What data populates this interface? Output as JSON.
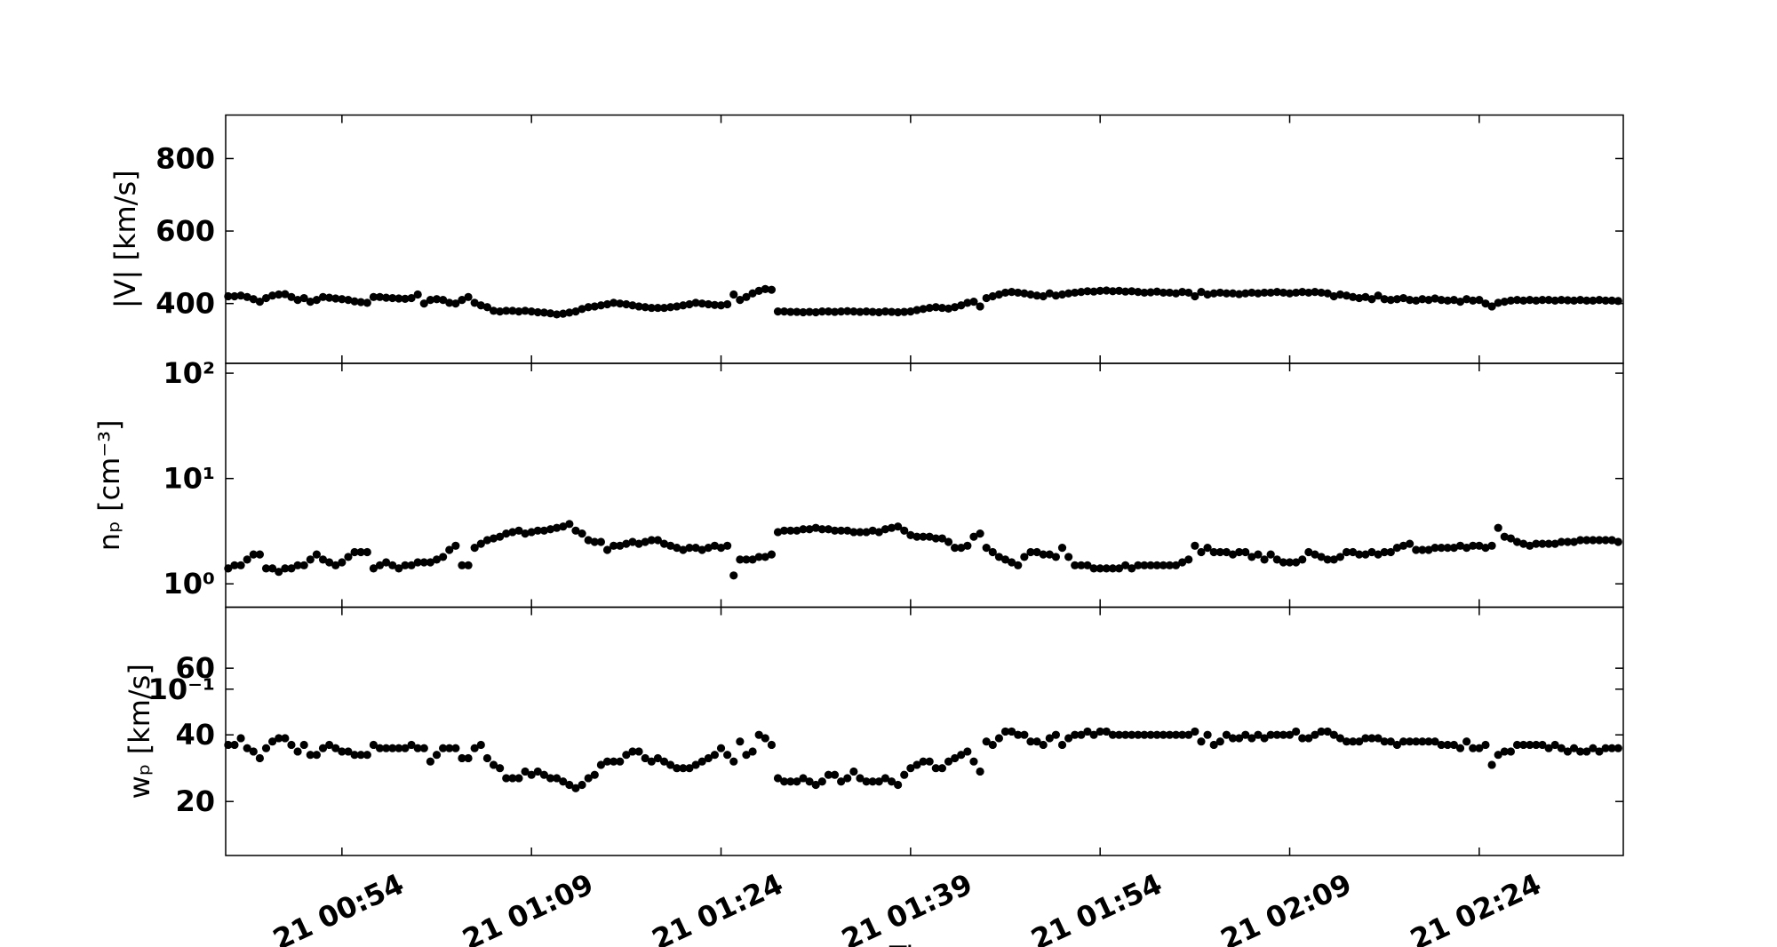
{
  "chart_data": {
    "type": "scatter",
    "xlabel": "Time",
    "color": "#000000",
    "xlim": [
      44.8,
      155.4
    ],
    "xticks": [
      {
        "value": 54,
        "label": "21 00:54"
      },
      {
        "value": 69,
        "label": "21 01:09"
      },
      {
        "value": 84,
        "label": "21 01:24"
      },
      {
        "value": 99,
        "label": "21 01:39"
      },
      {
        "value": 114,
        "label": "21 01:54"
      },
      {
        "value": 129,
        "label": "21 02:09"
      },
      {
        "value": 144,
        "label": "21 02:24"
      }
    ],
    "x": [
      45,
      45.5,
      46,
      46.5,
      47,
      47.5,
      48,
      48.5,
      49,
      49.5,
      50,
      50.5,
      51,
      51.5,
      52,
      52.5,
      53,
      53.5,
      54,
      54.5,
      55,
      55.5,
      56,
      56.5,
      57,
      57.5,
      58,
      58.5,
      59,
      59.5,
      60,
      60.5,
      61,
      61.5,
      62,
      62.5,
      63,
      63.5,
      64,
      64.5,
      65,
      65.5,
      66,
      66.5,
      67,
      67.5,
      68,
      68.5,
      69,
      69.5,
      70,
      70.5,
      71,
      71.5,
      72,
      72.5,
      73,
      73.5,
      74,
      74.5,
      75,
      75.5,
      76,
      76.5,
      77,
      77.5,
      78,
      78.5,
      79,
      79.5,
      80,
      80.5,
      81,
      81.5,
      82,
      82.5,
      83,
      83.5,
      84,
      84.5,
      85,
      85.5,
      86,
      86.5,
      87,
      87.5,
      88,
      88.5,
      89,
      89.5,
      90,
      90.5,
      91,
      91.5,
      92,
      92.5,
      93,
      93.5,
      94,
      94.5,
      95,
      95.5,
      96,
      96.5,
      97,
      97.5,
      98,
      98.5,
      99,
      99.5,
      100,
      100.5,
      101,
      101.5,
      102,
      102.5,
      103,
      103.5,
      104,
      104.5,
      105,
      105.5,
      106,
      106.5,
      107,
      107.5,
      108,
      108.5,
      109,
      109.5,
      110,
      110.5,
      111,
      111.5,
      112,
      112.5,
      113,
      113.5,
      114,
      114.5,
      115,
      115.5,
      116,
      116.5,
      117,
      117.5,
      118,
      118.5,
      119,
      119.5,
      120,
      120.5,
      121,
      121.5,
      122,
      122.5,
      123,
      123.5,
      124,
      124.5,
      125,
      125.5,
      126,
      126.5,
      127,
      127.5,
      128,
      128.5,
      129,
      129.5,
      130,
      130.5,
      131,
      131.5,
      132,
      132.5,
      133,
      133.5,
      134,
      134.5,
      135,
      135.5,
      136,
      136.5,
      137,
      137.5,
      138,
      138.5,
      139,
      139.5,
      140,
      140.5,
      141,
      141.5,
      142,
      142.5,
      143,
      143.5,
      144,
      144.5,
      145,
      145.5,
      146,
      146.5,
      147,
      147.5,
      148,
      148.5,
      149,
      149.5,
      150,
      150.5,
      151,
      151.5,
      152,
      152.5,
      153,
      153.5,
      154,
      154.5,
      155
    ],
    "panels": [
      {
        "ylabel": "|V| [km/s]",
        "log": false,
        "ylim": [
          235,
          920
        ],
        "yticks": [
          400,
          600,
          800
        ],
        "values": [
          420,
          420,
          422,
          418,
          412,
          405,
          415,
          422,
          425,
          426,
          418,
          410,
          415,
          405,
          410,
          418,
          416,
          414,
          412,
          410,
          406,
          404,
          402,
          418,
          418,
          416,
          415,
          414,
          413,
          415,
          425,
          400,
          410,
          412,
          410,
          402,
          400,
          410,
          418,
          402,
          395,
          390,
          380,
          378,
          380,
          380,
          378,
          380,
          378,
          376,
          375,
          373,
          370,
          372,
          375,
          378,
          385,
          390,
          392,
          395,
          398,
          402,
          400,
          398,
          395,
          392,
          390,
          388,
          388,
          388,
          390,
          392,
          395,
          398,
          402,
          400,
          398,
          396,
          395,
          398,
          425,
          410,
          418,
          428,
          435,
          440,
          438,
          378,
          378,
          377,
          377,
          376,
          377,
          376,
          378,
          378,
          377,
          378,
          379,
          378,
          377,
          378,
          377,
          376,
          378,
          377,
          376,
          377,
          378,
          382,
          385,
          388,
          390,
          388,
          386,
          390,
          395,
          402,
          405,
          392,
          415,
          420,
          425,
          430,
          432,
          430,
          428,
          425,
          422,
          420,
          428,
          422,
          425,
          428,
          430,
          432,
          434,
          433,
          435,
          436,
          434,
          435,
          433,
          434,
          432,
          430,
          431,
          433,
          430,
          430,
          428,
          432,
          430,
          420,
          432,
          425,
          428,
          430,
          428,
          428,
          426,
          428,
          430,
          428,
          430,
          430,
          432,
          430,
          428,
          430,
          432,
          430,
          432,
          430,
          428,
          420,
          425,
          422,
          418,
          415,
          418,
          412,
          422,
          412,
          410,
          412,
          415,
          410,
          408,
          412,
          410,
          414,
          410,
          408,
          410,
          405,
          412,
          408,
          410,
          400,
          392,
          402,
          405,
          408,
          410,
          408,
          410,
          408,
          410,
          410,
          408,
          410,
          409,
          408,
          410,
          408,
          408,
          410,
          408,
          408,
          407
        ]
      },
      {
        "ylabel": "nₚ [cm⁻³]",
        "log": true,
        "ylim": [
          0.6,
          124
        ],
        "yticks": [
          {
            "value": 100,
            "label": "10²"
          },
          {
            "value": 10,
            "label": "10¹"
          },
          {
            "value": 1,
            "label": "10⁰"
          },
          {
            "value": 0.1,
            "label": "10⁻¹"
          }
        ],
        "values": [
          1.4,
          1.5,
          1.5,
          1.7,
          1.9,
          1.9,
          1.4,
          1.4,
          1.3,
          1.4,
          1.4,
          1.5,
          1.5,
          1.7,
          1.9,
          1.7,
          1.6,
          1.5,
          1.6,
          1.8,
          2.0,
          2.0,
          2.0,
          1.4,
          1.5,
          1.6,
          1.5,
          1.4,
          1.5,
          1.5,
          1.6,
          1.6,
          1.6,
          1.7,
          1.8,
          2.1,
          2.3,
          1.5,
          1.5,
          2.2,
          2.4,
          2.6,
          2.7,
          2.8,
          3.0,
          3.1,
          3.2,
          3.0,
          3.1,
          3.2,
          3.2,
          3.3,
          3.4,
          3.5,
          3.7,
          3.2,
          3.0,
          2.6,
          2.5,
          2.5,
          2.1,
          2.3,
          2.3,
          2.4,
          2.5,
          2.4,
          2.5,
          2.6,
          2.6,
          2.4,
          2.3,
          2.2,
          2.1,
          2.2,
          2.2,
          2.1,
          2.2,
          2.3,
          2.2,
          2.3,
          1.2,
          1.7,
          1.7,
          1.7,
          1.8,
          1.8,
          1.9,
          3.1,
          3.2,
          3.2,
          3.2,
          3.3,
          3.3,
          3.4,
          3.3,
          3.3,
          3.2,
          3.2,
          3.2,
          3.1,
          3.1,
          3.1,
          3.2,
          3.1,
          3.3,
          3.4,
          3.5,
          3.2,
          2.9,
          2.8,
          2.8,
          2.8,
          2.7,
          2.7,
          2.5,
          2.2,
          2.2,
          2.3,
          2.8,
          3.0,
          2.2,
          2.0,
          1.8,
          1.7,
          1.6,
          1.5,
          1.8,
          2.0,
          2.0,
          1.9,
          1.9,
          1.8,
          2.2,
          1.8,
          1.5,
          1.5,
          1.5,
          1.4,
          1.4,
          1.4,
          1.4,
          1.4,
          1.5,
          1.4,
          1.5,
          1.5,
          1.5,
          1.5,
          1.5,
          1.5,
          1.5,
          1.6,
          1.7,
          2.3,
          2.0,
          2.2,
          2.0,
          2.0,
          2.0,
          1.9,
          2.0,
          2.0,
          1.8,
          1.9,
          1.7,
          1.9,
          1.7,
          1.6,
          1.6,
          1.6,
          1.7,
          2.0,
          1.9,
          1.8,
          1.7,
          1.7,
          1.8,
          2.0,
          2.0,
          1.9,
          1.9,
          2.0,
          1.9,
          2.0,
          2.0,
          2.2,
          2.3,
          2.4,
          2.1,
          2.1,
          2.1,
          2.2,
          2.2,
          2.2,
          2.2,
          2.3,
          2.2,
          2.3,
          2.3,
          2.2,
          2.3,
          3.4,
          2.8,
          2.7,
          2.5,
          2.4,
          2.3,
          2.4,
          2.4,
          2.4,
          2.4,
          2.5,
          2.5,
          2.5,
          2.6,
          2.6,
          2.6,
          2.6,
          2.6,
          2.6,
          2.5
        ]
      },
      {
        "ylabel": "wₚ [km/s]",
        "log": false,
        "ylim": [
          3.8,
          78.3
        ],
        "yticks": [
          20,
          40,
          60
        ],
        "values": [
          37,
          37,
          39,
          36,
          35,
          33,
          36,
          38,
          39,
          39,
          37,
          35,
          37,
          34,
          34,
          36,
          37,
          36,
          35,
          35,
          34,
          34,
          34,
          37,
          36,
          36,
          36,
          36,
          36,
          37,
          36,
          36,
          32,
          34,
          36,
          36,
          36,
          33,
          33,
          36,
          37,
          33,
          31,
          30,
          27,
          27,
          27,
          29,
          28,
          29,
          28,
          27,
          27,
          26,
          25,
          24,
          25,
          27,
          28,
          31,
          32,
          32,
          32,
          34,
          35,
          35,
          33,
          32,
          33,
          32,
          31,
          30,
          30,
          30,
          31,
          32,
          33,
          34,
          36,
          34,
          32,
          38,
          34,
          35,
          40,
          39,
          37,
          27,
          26,
          26,
          26,
          27,
          26,
          25,
          26,
          28,
          28,
          26,
          27,
          29,
          27,
          26,
          26,
          26,
          27,
          26,
          25,
          28,
          30,
          31,
          32,
          32,
          30,
          30,
          32,
          33,
          34,
          35,
          32,
          29,
          38,
          37,
          39,
          41,
          41,
          40,
          40,
          38,
          38,
          37,
          39,
          40,
          37,
          39,
          40,
          40,
          41,
          40,
          41,
          41,
          40,
          40,
          40,
          40,
          40,
          40,
          40,
          40,
          40,
          40,
          40,
          40,
          40,
          41,
          38,
          40,
          37,
          38,
          40,
          39,
          39,
          40,
          39,
          40,
          39,
          40,
          40,
          40,
          40,
          41,
          39,
          39,
          40,
          41,
          41,
          40,
          39,
          38,
          38,
          38,
          39,
          39,
          39,
          38,
          38,
          37,
          38,
          38,
          38,
          38,
          38,
          38,
          37,
          37,
          37,
          36,
          38,
          36,
          36,
          37,
          31,
          34,
          35,
          35,
          37,
          37,
          37,
          37,
          37,
          36,
          37,
          36,
          35,
          36,
          35,
          35,
          36,
          35,
          36,
          36,
          36
        ]
      }
    ]
  }
}
